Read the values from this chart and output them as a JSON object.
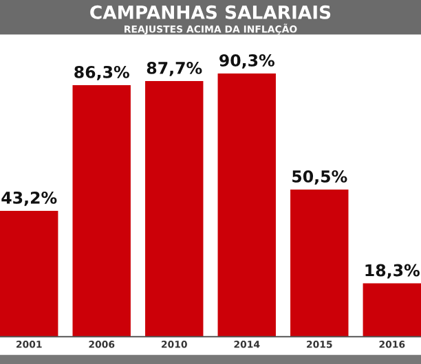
{
  "chart_data": {
    "type": "bar",
    "title": "CAMPANHAS SALARIAIS",
    "subtitle": "REAJUSTES ACIMA DA INFLAÇÃO",
    "categories": [
      "2001",
      "2006",
      "2010",
      "2014",
      "2015",
      "2016"
    ],
    "values": [
      43.2,
      86.3,
      87.7,
      90.3,
      50.5,
      18.3
    ],
    "value_labels": [
      "43,2%",
      "86,3%",
      "87,7%",
      "90,3%",
      "50,5%",
      "18,3%"
    ],
    "color": "#cc0008"
  }
}
